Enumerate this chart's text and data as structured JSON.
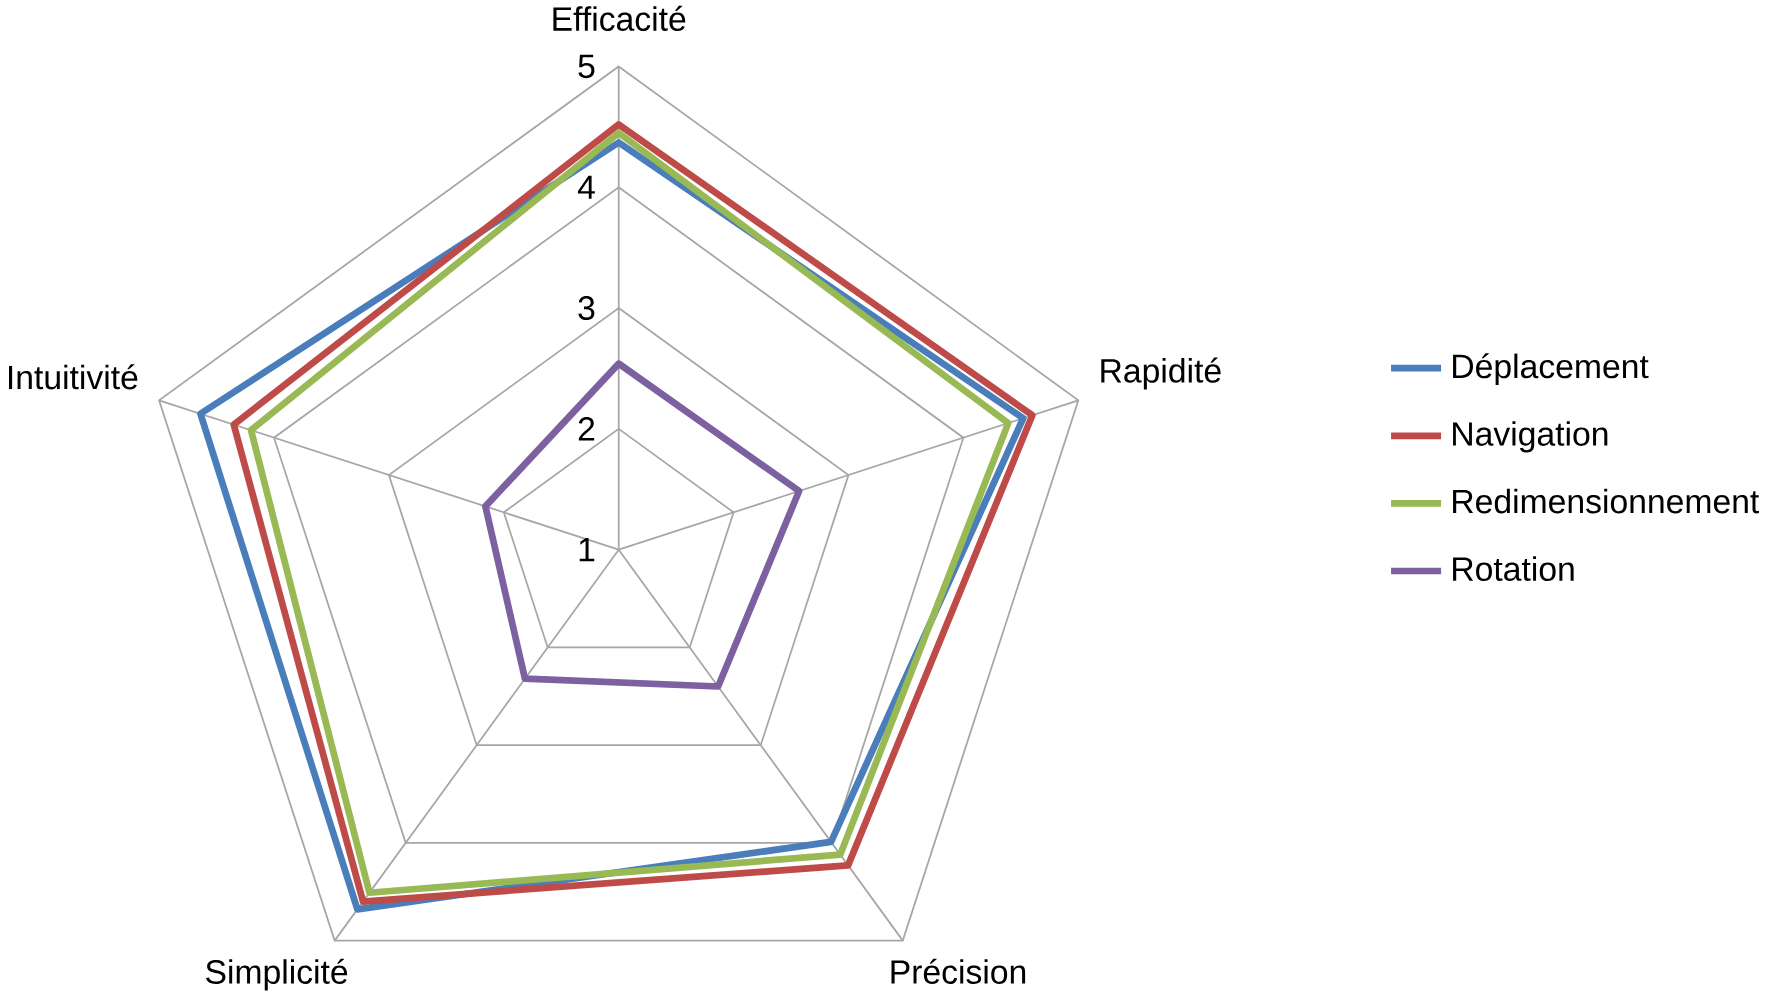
{
  "chart_data": {
    "type": "radar",
    "categories": [
      "Efficacité",
      "Rapidité",
      "Précision",
      "Simplicité",
      "Intuitivité"
    ],
    "series": [
      {
        "name": "Déplacement",
        "color": "#4a7ebb",
        "values": [
          4.37,
          4.52,
          3.99,
          4.68,
          4.64
        ]
      },
      {
        "name": "Navigation",
        "color": "#be4b48",
        "values": [
          4.52,
          4.6,
          4.23,
          4.6,
          4.35
        ]
      },
      {
        "name": "Redimensionnement",
        "color": "#98b954",
        "values": [
          4.45,
          4.39,
          4.12,
          4.51,
          4.2
        ]
      },
      {
        "name": "Rotation",
        "color": "#7d60a0",
        "values": [
          2.54,
          2.57,
          2.4,
          2.32,
          2.16
        ]
      }
    ],
    "ylim": [
      1,
      5
    ],
    "yticks": [
      1,
      2,
      3,
      4,
      5
    ],
    "grid": true,
    "legend": "right"
  }
}
